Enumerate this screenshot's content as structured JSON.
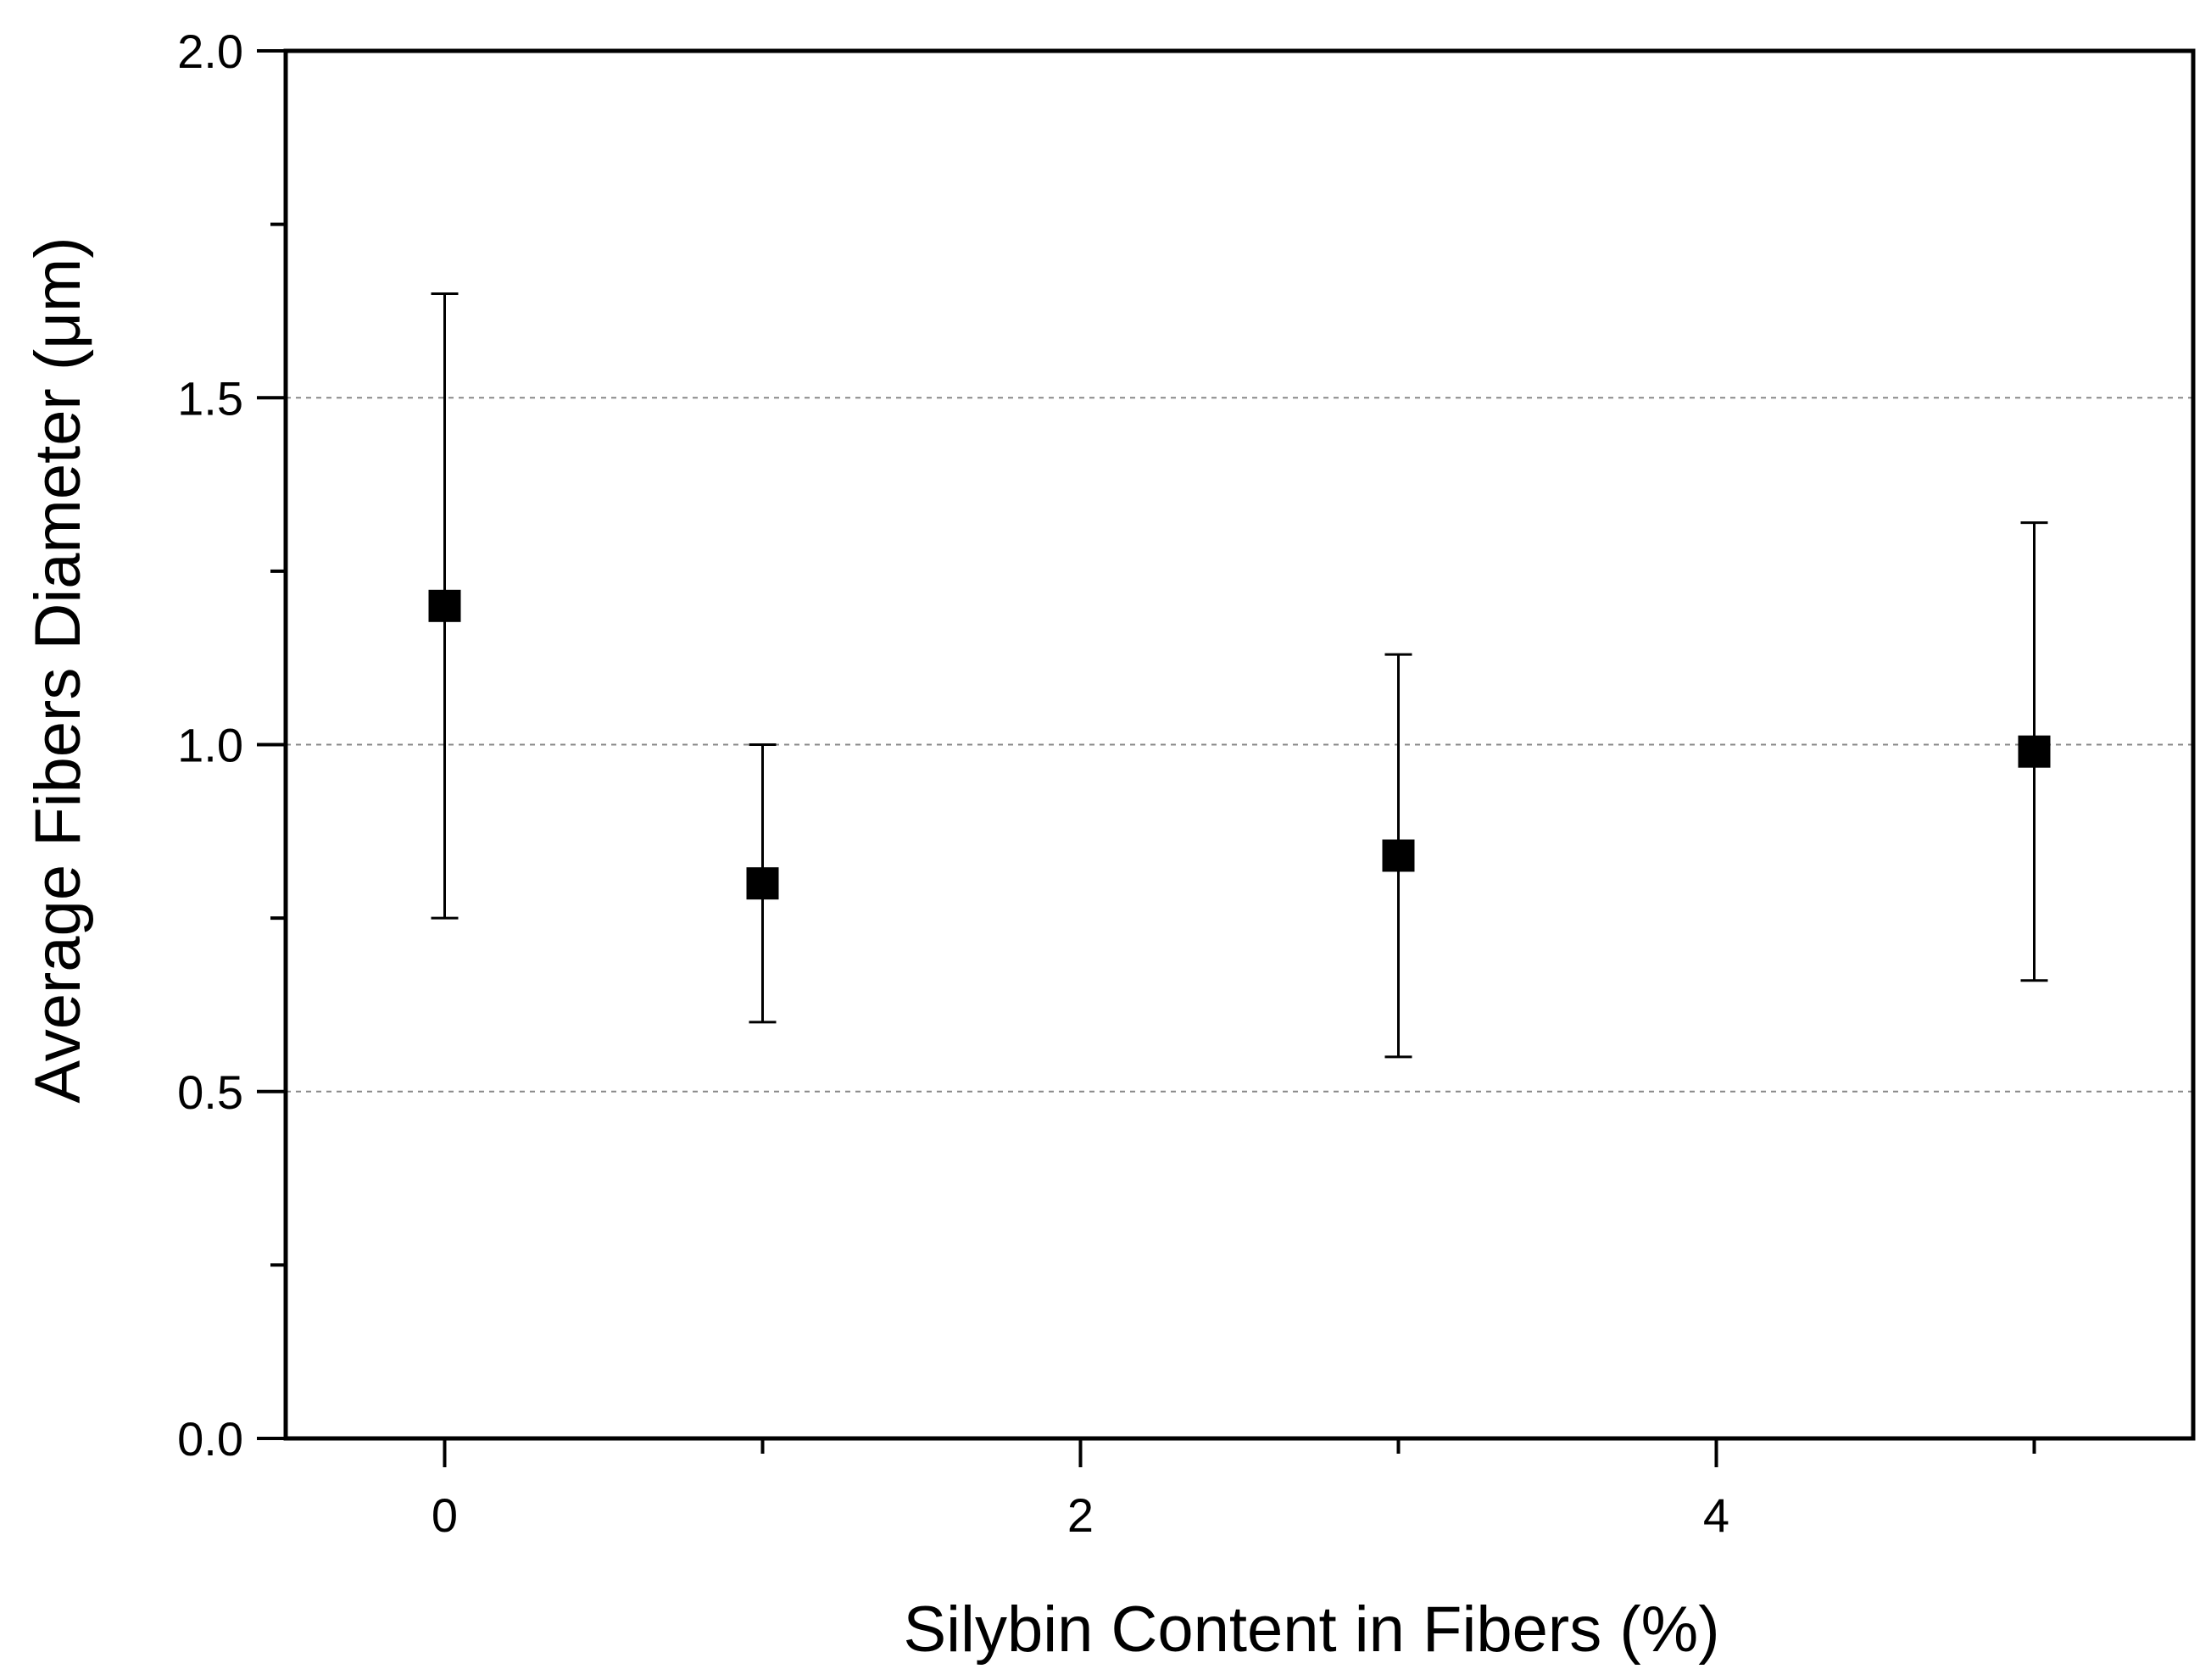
{
  "chart_data": {
    "type": "scatter",
    "title": "",
    "xlabel": "Silybin Content in Fibers (%)",
    "ylabel": "Average Fibers Diameter (μm)",
    "xlim": [
      -0.5,
      5.5
    ],
    "ylim": [
      0,
      2.0
    ],
    "xticks": [
      0,
      2,
      4
    ],
    "xticks_minor": [
      1,
      3,
      5
    ],
    "xtick_labels": [
      "0",
      "2",
      "4"
    ],
    "yticks": [
      0.0,
      0.5,
      1.0,
      1.5,
      2.0
    ],
    "yticks_minor": [
      0.25,
      0.75,
      1.25,
      1.75
    ],
    "ytick_labels": [
      "0.0",
      "0.5",
      "1.0",
      "1.5",
      "2.0"
    ],
    "grid": {
      "horizontal_dashed_at": [
        0.5,
        1.0,
        1.5
      ]
    },
    "marker": "square",
    "colors": {
      "marker": "#000000",
      "axis": "#000000",
      "grid": "#888888"
    },
    "points": [
      {
        "x": 0,
        "y": 1.2,
        "err_low": 0.75,
        "err_high": 1.65
      },
      {
        "x": 1,
        "y": 0.8,
        "err_low": 0.6,
        "err_high": 1.0
      },
      {
        "x": 3,
        "y": 0.84,
        "err_low": 0.55,
        "err_high": 1.13
      },
      {
        "x": 5,
        "y": 0.99,
        "err_low": 0.66,
        "err_high": 1.32
      }
    ]
  }
}
